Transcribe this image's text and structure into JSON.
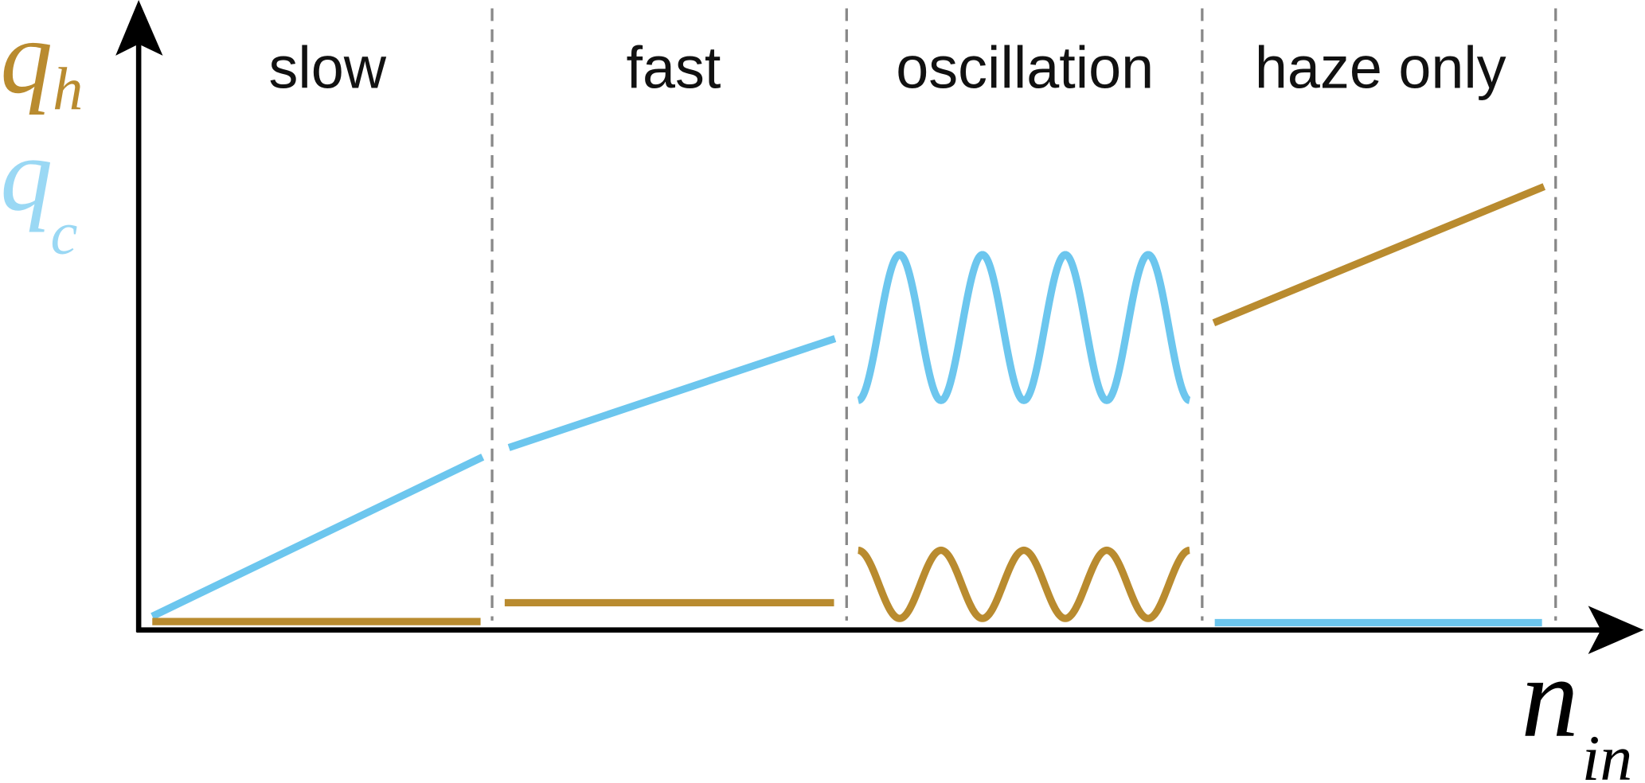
{
  "regions": [
    {
      "label": "slow"
    },
    {
      "label": "fast"
    },
    {
      "label": "oscillation"
    },
    {
      "label": "haze only"
    }
  ],
  "y_axis": {
    "labels": [
      {
        "symbol": "q",
        "subscript": "h"
      },
      {
        "symbol": "q",
        "subscript": "c"
      }
    ]
  },
  "x_axis": {
    "label": {
      "symbol": "n",
      "subscript": "in"
    }
  }
}
